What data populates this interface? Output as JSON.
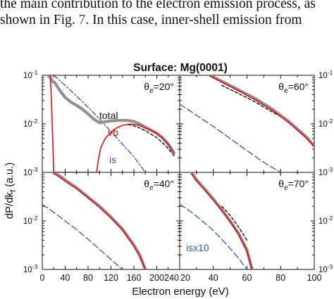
{
  "body_text": {
    "line1": "the main contribution to the electron emission process, as",
    "line2_before": "shown in Fig. ",
    "line2_ref": "7",
    "line2_after": ". In this case, inner-shell emission from"
  },
  "figure": {
    "title": "Surface: Mg(0001)",
    "ylabel_main": "dP/dk",
    "ylabel_sub": "f",
    "ylabel_unit": " (a.u.)",
    "xlabel": "Electron energy (eV)"
  },
  "colors": {
    "total": "#909090",
    "vb": "#dd1111",
    "is": "#2a5bb8",
    "dashed": "#111111"
  },
  "chart_data": [
    {
      "type": "line",
      "panel": "top-left",
      "annotation": "θe=20°",
      "xlim": [
        0,
        240
      ],
      "ylim": [
        0.001,
        0.1
      ],
      "yscale": "log",
      "ytick_labels": [
        "10^-1",
        "10^-2",
        "10^-3"
      ],
      "series": [
        {
          "name": "total",
          "x": [
            10,
            14,
            18,
            22,
            30,
            40,
            50,
            60,
            70,
            80,
            90,
            100,
            110,
            120,
            130,
            140,
            150,
            160,
            170,
            180,
            190,
            200,
            210,
            220,
            230
          ],
          "y": [
            0.1,
            0.09,
            0.075,
            0.07,
            0.05,
            0.035,
            0.028,
            0.024,
            0.02,
            0.016,
            0.0125,
            0.0105,
            0.011,
            0.0115,
            0.0117,
            0.0118,
            0.0117,
            0.0112,
            0.01,
            0.0085,
            0.0074,
            0.0064,
            0.0052,
            0.0038,
            0.0025
          ]
        },
        {
          "name": "vb",
          "x": [
            14,
            16,
            18,
            20,
            95,
            98,
            102,
            110,
            120,
            130,
            140,
            150,
            160,
            170,
            180,
            190,
            200,
            210,
            220,
            230
          ],
          "y": [
            0.1,
            0.03,
            0.006,
            0.001,
            0.001,
            0.0018,
            0.0032,
            0.005,
            0.0068,
            0.0082,
            0.0093,
            0.0098,
            0.0098,
            0.0092,
            0.0082,
            0.0073,
            0.0063,
            0.0051,
            0.0038,
            0.0025
          ]
        },
        {
          "name": "is",
          "x": [
            20,
            40,
            60,
            80,
            100,
            120,
            140,
            160,
            180
          ],
          "y": [
            0.1,
            0.062,
            0.037,
            0.022,
            0.0125,
            0.0069,
            0.0038,
            0.0021,
            0.001
          ]
        },
        {
          "name": "",
          "x": [
            150,
            160,
            170,
            180,
            190,
            200,
            210,
            220,
            230
          ],
          "y": [
            0.0097,
            0.0091,
            0.0082,
            0.0072,
            0.0061,
            0.0052,
            0.0041,
            0.0031,
            0.0022
          ]
        }
      ],
      "labels": {
        "total": "total",
        "vb": "vb",
        "is": "is"
      }
    },
    {
      "type": "line",
      "panel": "top-right",
      "annotation": "θe=60°",
      "xlim": [
        20,
        100
      ],
      "ylim": [
        0.001,
        0.1
      ],
      "yscale": "log",
      "series": [
        {
          "name": "total",
          "x": [
            38,
            45,
            55,
            65,
            75,
            85,
            95,
            100
          ],
          "y": [
            0.1,
            0.075,
            0.05,
            0.033,
            0.02,
            0.011,
            0.0055,
            0.0035
          ]
        },
        {
          "name": "vb",
          "x": [
            38,
            45,
            55,
            65,
            75,
            85,
            95,
            100
          ],
          "y": [
            0.097,
            0.072,
            0.048,
            0.031,
            0.019,
            0.0105,
            0.0052,
            0.0034
          ]
        },
        {
          "name": "",
          "x": [
            45,
            55,
            65,
            75,
            85
          ],
          "y": [
            0.062,
            0.042,
            0.028,
            0.0175,
            0.0115
          ]
        },
        {
          "name": "is",
          "x": [
            20,
            30,
            40,
            50,
            60,
            70,
            80
          ],
          "y": [
            0.0255,
            0.015,
            0.0088,
            0.005,
            0.0028,
            0.0016,
            0.001
          ]
        }
      ]
    },
    {
      "type": "line",
      "panel": "bottom-left",
      "annotation": "θe=40°",
      "xlim": [
        0,
        240
      ],
      "ylim": [
        0.001,
        0.1
      ],
      "yscale": "log",
      "series": [
        {
          "name": "total",
          "x": [
            20,
            30,
            45,
            60,
            80,
            100,
            120,
            140,
            160,
            170,
            180
          ],
          "y": [
            0.1,
            0.085,
            0.063,
            0.048,
            0.031,
            0.02,
            0.012,
            0.0068,
            0.0032,
            0.002,
            0.001
          ]
        },
        {
          "name": "vb",
          "x": [
            20,
            30,
            45,
            60,
            80,
            100,
            120,
            140,
            160,
            170,
            180
          ],
          "y": [
            0.095,
            0.08,
            0.06,
            0.046,
            0.03,
            0.019,
            0.0115,
            0.0065,
            0.003,
            0.0019,
            0.001
          ]
        },
        {
          "name": "",
          "x": [
            75,
            90,
            105,
            120,
            140,
            160
          ],
          "y": [
            0.036,
            0.025,
            0.0165,
            0.0115,
            0.0068,
            0.0035
          ]
        },
        {
          "name": "is",
          "x": [
            0,
            20,
            40,
            60,
            80,
            100,
            120,
            140
          ],
          "y": [
            0.022,
            0.015,
            0.01,
            0.0066,
            0.0042,
            0.0026,
            0.0016,
            0.001
          ]
        }
      ]
    },
    {
      "type": "line",
      "panel": "bottom-right",
      "annotation": "θe=70°",
      "xlim": [
        20,
        100
      ],
      "ylim": [
        0.001,
        0.1
      ],
      "yscale": "log",
      "series": [
        {
          "name": "total",
          "x": [
            27,
            30,
            35,
            40,
            45,
            50,
            55,
            60,
            63
          ],
          "y": [
            0.1,
            0.07,
            0.045,
            0.028,
            0.017,
            0.01,
            0.0055,
            0.0025,
            0.001
          ]
        },
        {
          "name": "vb",
          "x": [
            27,
            30,
            35,
            40,
            45,
            50,
            55,
            60,
            63
          ],
          "y": [
            0.095,
            0.067,
            0.043,
            0.027,
            0.0165,
            0.0097,
            0.0053,
            0.0024,
            0.001
          ]
        },
        {
          "name": "",
          "x": [
            45,
            50,
            55,
            60
          ],
          "y": [
            0.02,
            0.013,
            0.0075,
            0.004
          ]
        },
        {
          "name": "is",
          "x": [
            20,
            25,
            30,
            35,
            40,
            45,
            50,
            55,
            60
          ],
          "y": [
            0.022,
            0.017,
            0.0125,
            0.009,
            0.0063,
            0.0042,
            0.0027,
            0.0017,
            0.001
          ]
        }
      ],
      "labels": {
        "is": "isx10"
      }
    }
  ],
  "axes_ticks": {
    "left_x": [
      "0",
      "40",
      "80",
      "120",
      "160",
      "200",
      "240"
    ],
    "right_x": [
      "20",
      "40",
      "60",
      "80",
      "100"
    ]
  }
}
